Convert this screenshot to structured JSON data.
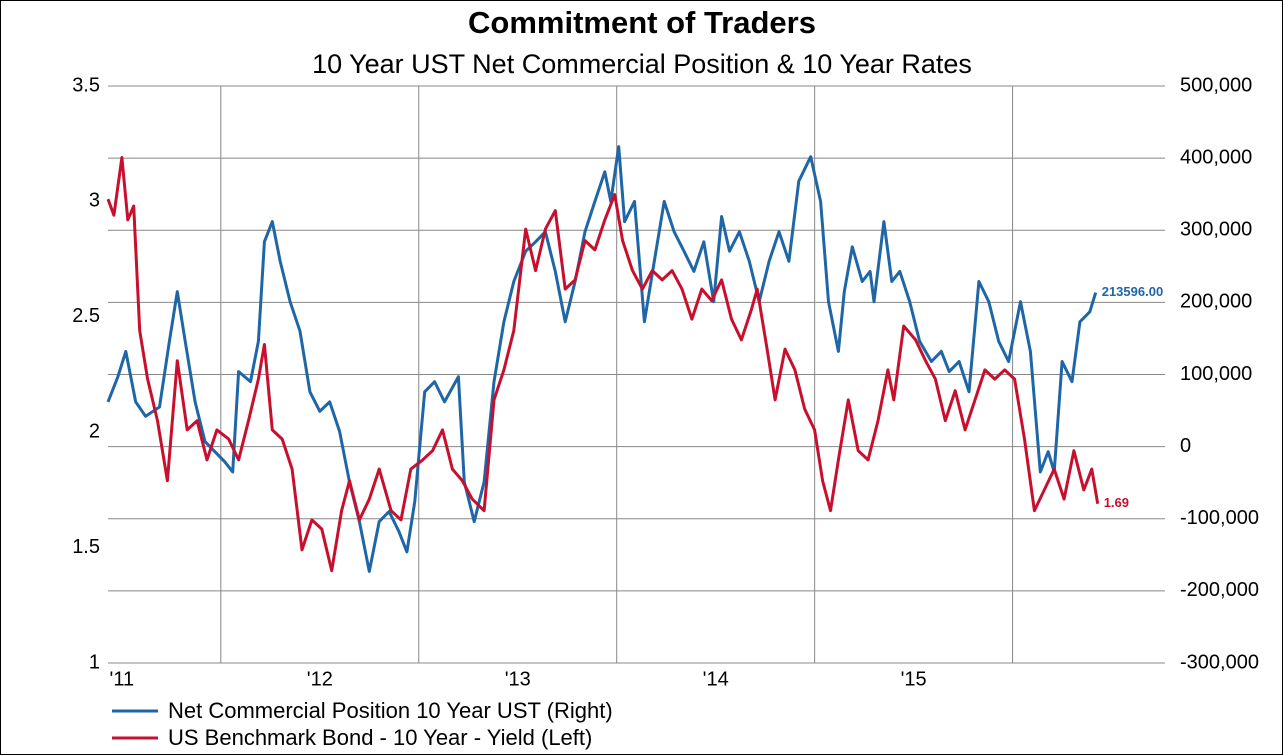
{
  "chart_data": {
    "type": "line",
    "title": "Commitment of Traders",
    "subtitle": "10 Year UST Net Commercial Position & 10 Year Rates",
    "xlim": [
      2010.93,
      2016.27
    ],
    "xticks": [
      {
        "value": 2011,
        "label": "'11"
      },
      {
        "value": 2012,
        "label": "'12"
      },
      {
        "value": 2013,
        "label": "'13"
      },
      {
        "value": 2014,
        "label": "'14"
      },
      {
        "value": 2015,
        "label": "'15"
      }
    ],
    "xgrid": [
      2011.5,
      2012.5,
      2013.5,
      2014.5,
      2015.5
    ],
    "ylim": [
      1,
      3.5
    ],
    "yticks": [
      1,
      1.5,
      2,
      2.5,
      3,
      3.5
    ],
    "y2lim": [
      -300000,
      500000
    ],
    "y2ticks": [
      {
        "value": -300000,
        "label": "-300,000"
      },
      {
        "value": -200000,
        "label": "-200,000"
      },
      {
        "value": -100000,
        "label": "-100,000"
      },
      {
        "value": 0,
        "label": "0"
      },
      {
        "value": 100000,
        "label": "100,000"
      },
      {
        "value": 200000,
        "label": "200,000"
      },
      {
        "value": 300000,
        "label": "300,000"
      },
      {
        "value": 400000,
        "label": "400,000"
      },
      {
        "value": 500000,
        "label": "500,000"
      }
    ],
    "grid": true,
    "legend": "bottom",
    "series": [
      {
        "name": "Net Commercial Position 10 Year UST (Right)",
        "color": "#1f66a6",
        "axis": "y2",
        "last_label": "213596.00",
        "x": [
          2010.93,
          2010.98,
          2011.02,
          2011.07,
          2011.12,
          2011.19,
          2011.24,
          2011.28,
          2011.32,
          2011.37,
          2011.42,
          2011.47,
          2011.52,
          2011.56,
          2011.59,
          2011.65,
          2011.69,
          2011.72,
          2011.76,
          2011.8,
          2011.85,
          2011.9,
          2011.95,
          2012.0,
          2012.05,
          2012.1,
          2012.15,
          2012.2,
          2012.25,
          2012.3,
          2012.35,
          2012.4,
          2012.44,
          2012.48,
          2012.53,
          2012.58,
          2012.63,
          2012.7,
          2012.73,
          2012.78,
          2012.83,
          2012.88,
          2012.93,
          2012.98,
          2013.04,
          2013.09,
          2013.14,
          2013.19,
          2013.24,
          2013.29,
          2013.34,
          2013.39,
          2013.44,
          2013.47,
          2013.51,
          2013.54,
          2013.59,
          2013.64,
          2013.69,
          2013.74,
          2013.79,
          2013.84,
          2013.89,
          2013.94,
          2013.99,
          2014.03,
          2014.07,
          2014.12,
          2014.17,
          2014.22,
          2014.27,
          2014.32,
          2014.37,
          2014.42,
          2014.48,
          2014.53,
          2014.57,
          2014.62,
          2014.65,
          2014.69,
          2014.74,
          2014.78,
          2014.8,
          2014.85,
          2014.89,
          2014.93,
          2014.98,
          2015.03,
          2015.09,
          2015.14,
          2015.18,
          2015.23,
          2015.28,
          2015.33,
          2015.38,
          2015.43,
          2015.48,
          2015.54,
          2015.59,
          2015.64,
          2015.68,
          2015.71,
          2015.75,
          2015.8,
          2015.84,
          2015.89,
          2015.92
        ],
        "values": [
          62000,
          97000,
          132000,
          62000,
          42000,
          55000,
          146000,
          215000,
          146000,
          62000,
          7000,
          -7000,
          -21000,
          -35000,
          104000,
          90000,
          146000,
          284000,
          312000,
          257000,
          201000,
          160000,
          76000,
          49000,
          62000,
          21000,
          -49000,
          -104000,
          -173000,
          -104000,
          -90000,
          -118000,
          -146000,
          -76000,
          76000,
          90000,
          62000,
          97000,
          -49000,
          -104000,
          -49000,
          90000,
          173000,
          229000,
          271000,
          284000,
          298000,
          243000,
          173000,
          229000,
          298000,
          340000,
          381000,
          340000,
          416000,
          312000,
          340000,
          173000,
          257000,
          340000,
          298000,
          271000,
          243000,
          284000,
          201000,
          319000,
          271000,
          298000,
          257000,
          201000,
          257000,
          298000,
          257000,
          368000,
          402000,
          340000,
          201000,
          132000,
          215000,
          277000,
          229000,
          243000,
          201000,
          312000,
          229000,
          243000,
          201000,
          146000,
          118000,
          132000,
          104000,
          118000,
          76000,
          229000,
          201000,
          146000,
          118000,
          201000,
          132000,
          -35000,
          -7000,
          -35000,
          118000,
          90000,
          173000,
          187000,
          213596
        ]
      },
      {
        "name": "US Benchmark Bond - 10 Year - Yield  (Left)",
        "color": "#c8102e",
        "axis": "y",
        "last_label": "1.69",
        "x": [
          2010.93,
          2010.96,
          2011.0,
          2011.03,
          2011.06,
          2011.09,
          2011.13,
          2011.18,
          2011.23,
          2011.28,
          2011.33,
          2011.38,
          2011.43,
          2011.48,
          2011.54,
          2011.59,
          2011.64,
          2011.69,
          2011.72,
          2011.76,
          2011.81,
          2011.86,
          2011.91,
          2011.96,
          2012.01,
          2012.06,
          2012.11,
          2012.15,
          2012.2,
          2012.25,
          2012.3,
          2012.36,
          2012.41,
          2012.46,
          2012.52,
          2012.57,
          2012.62,
          2012.67,
          2012.72,
          2012.77,
          2012.83,
          2012.88,
          2012.93,
          2012.98,
          2013.04,
          2013.09,
          2013.14,
          2013.19,
          2013.24,
          2013.29,
          2013.34,
          2013.39,
          2013.44,
          2013.49,
          2013.53,
          2013.58,
          2013.63,
          2013.68,
          2013.73,
          2013.78,
          2013.83,
          2013.88,
          2013.93,
          2013.98,
          2014.03,
          2014.08,
          2014.13,
          2014.18,
          2014.21,
          2014.26,
          2014.3,
          2014.35,
          2014.4,
          2014.45,
          2014.5,
          2014.54,
          2014.58,
          2014.62,
          2014.67,
          2014.72,
          2014.77,
          2014.82,
          2014.87,
          2014.9,
          2014.95,
          2015.01,
          2015.06,
          2015.11,
          2015.16,
          2015.21,
          2015.26,
          2015.31,
          2015.36,
          2015.41,
          2015.46,
          2015.51,
          2015.56,
          2015.61,
          2015.66,
          2015.71,
          2015.76,
          2015.81,
          2015.86,
          2015.9,
          2015.93
        ],
        "values": [
          3.01,
          2.94,
          3.19,
          2.92,
          2.98,
          2.44,
          2.23,
          2.05,
          1.79,
          2.31,
          2.01,
          2.05,
          1.88,
          2.01,
          1.97,
          1.88,
          2.05,
          2.23,
          2.38,
          2.01,
          1.97,
          1.84,
          1.49,
          1.62,
          1.58,
          1.4,
          1.66,
          1.79,
          1.62,
          1.71,
          1.84,
          1.66,
          1.62,
          1.84,
          1.88,
          1.92,
          2.01,
          1.84,
          1.79,
          1.71,
          1.66,
          2.14,
          2.27,
          2.44,
          2.88,
          2.7,
          2.88,
          2.96,
          2.62,
          2.66,
          2.83,
          2.79,
          2.92,
          3.03,
          2.83,
          2.7,
          2.62,
          2.7,
          2.66,
          2.7,
          2.62,
          2.49,
          2.62,
          2.57,
          2.66,
          2.49,
          2.4,
          2.53,
          2.62,
          2.36,
          2.14,
          2.36,
          2.27,
          2.1,
          2.01,
          1.79,
          1.66,
          1.88,
          2.14,
          1.92,
          1.88,
          2.05,
          2.27,
          2.14,
          2.46,
          2.4,
          2.31,
          2.23,
          2.05,
          2.18,
          2.01,
          2.14,
          2.27,
          2.23,
          2.27,
          2.23,
          1.97,
          1.66,
          1.75,
          1.84,
          1.71,
          1.92,
          1.75,
          1.84,
          1.69
        ]
      }
    ]
  }
}
